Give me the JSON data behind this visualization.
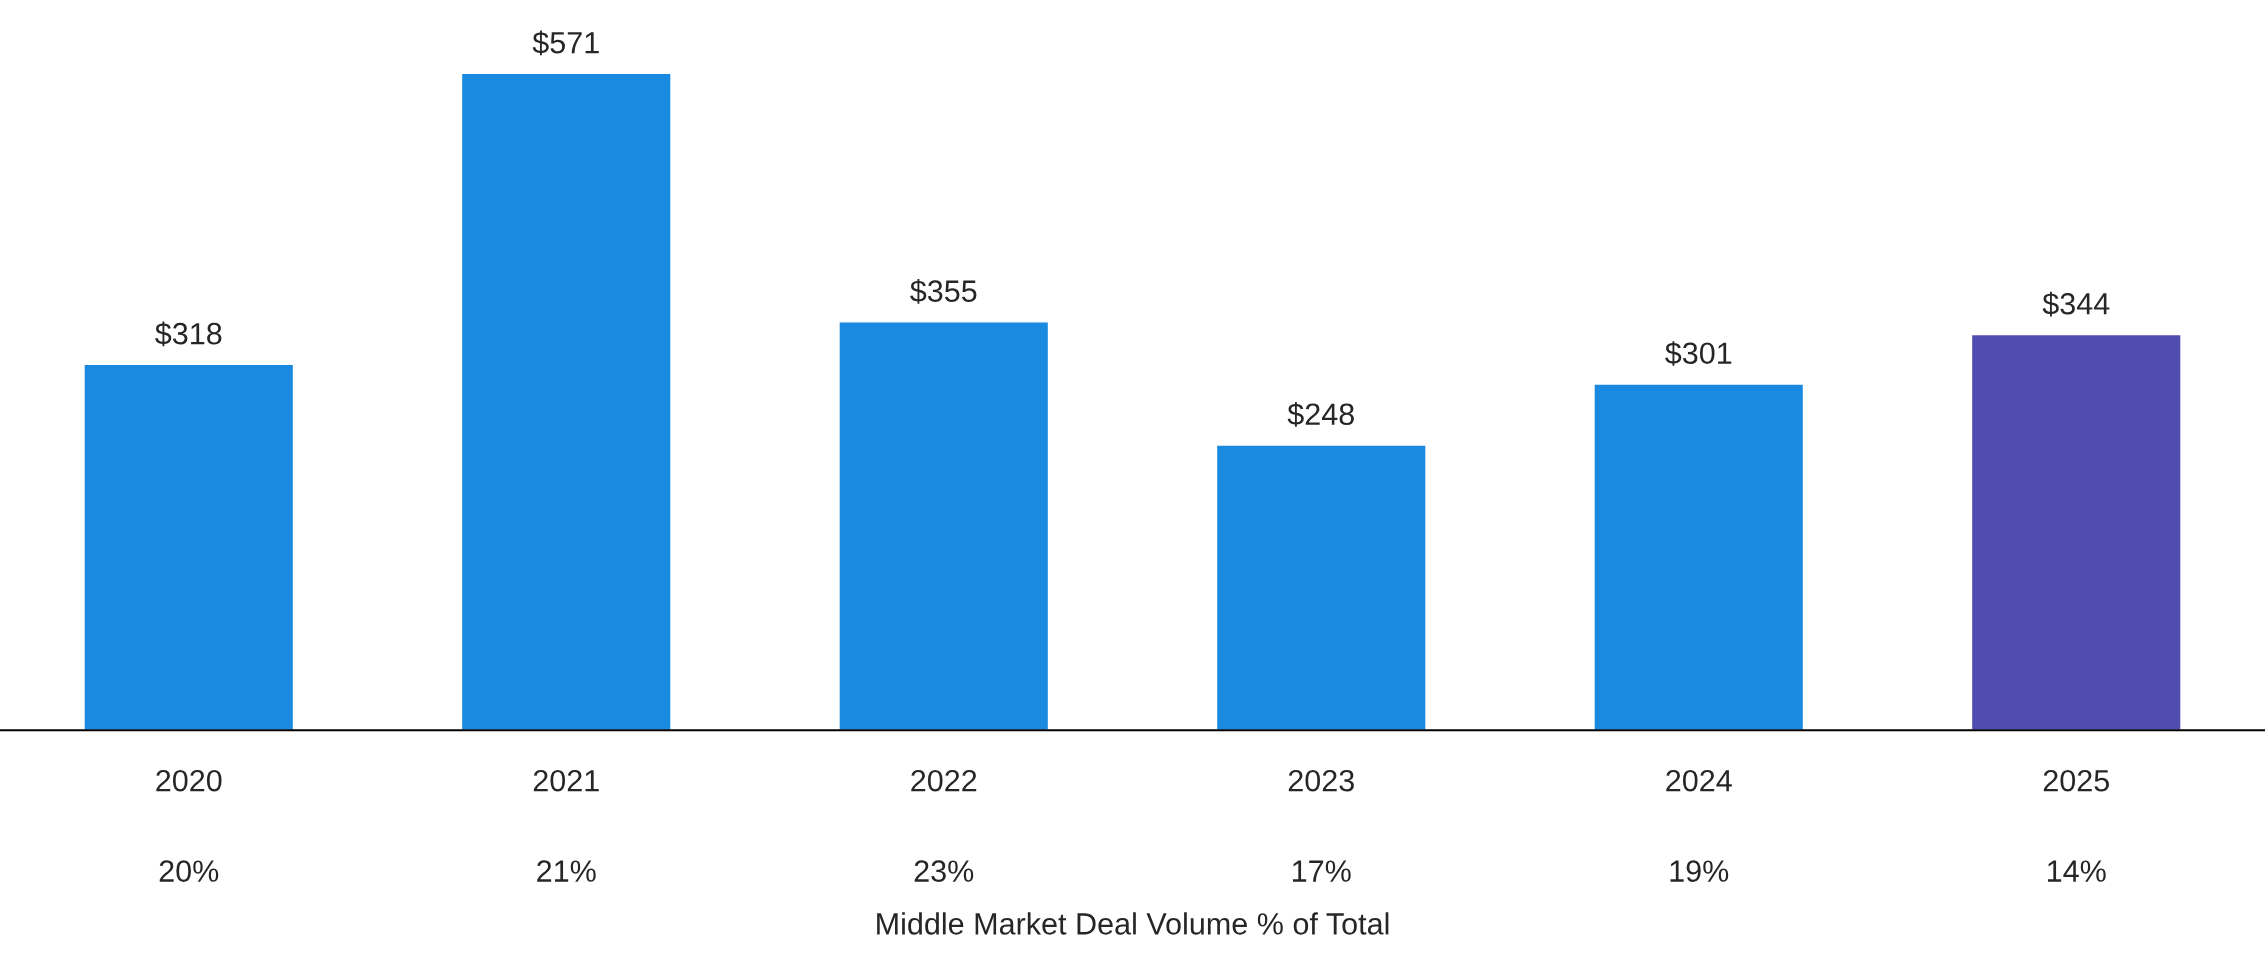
{
  "chart_data": {
    "type": "bar",
    "categories": [
      "2020",
      "2021",
      "2022",
      "2023",
      "2024",
      "2025"
    ],
    "values": [
      318,
      571,
      355,
      248,
      301,
      344
    ],
    "colors": [
      "#1a8ae0",
      "#1a8ae0",
      "#1a8ae0",
      "#1a8ae0",
      "#1a8ae0",
      "#4f4db0"
    ],
    "value_labels": [
      "$318",
      "$571",
      "$355",
      "$248",
      "$301",
      "$344"
    ],
    "xlabel": "Middle Market Deal Volume % of Total",
    "annotations": [
      "20%",
      "21%",
      "23%",
      "17%",
      "19%",
      "14%"
    ],
    "grid": false,
    "legend": false
  }
}
